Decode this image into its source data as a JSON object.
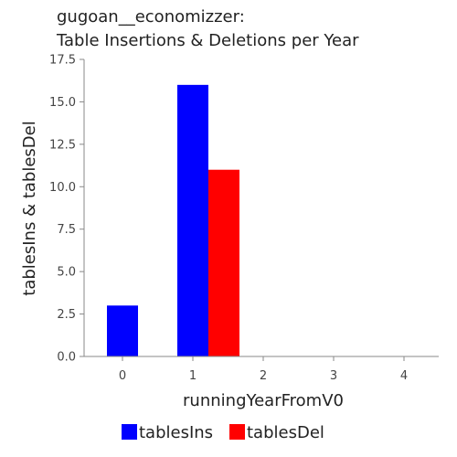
{
  "chart_data": {
    "type": "bar",
    "title_lines": [
      "gugoan__economizzer:",
      "Table Insertions & Deletions per Year"
    ],
    "xlabel": "runningYearFromV0",
    "ylabel": "tablesIns & tablesDel",
    "categories": [
      "0",
      "1",
      "2",
      "3",
      "4"
    ],
    "series": [
      {
        "name": "tablesIns",
        "color": "#0000ff",
        "values": [
          3,
          16,
          0,
          0,
          0
        ]
      },
      {
        "name": "tablesDel",
        "color": "#ff0000",
        "values": [
          0,
          11,
          0,
          0,
          0
        ]
      }
    ],
    "ylim": [
      0,
      17.5
    ],
    "yticks": [
      "0.0",
      "2.5",
      "5.0",
      "7.5",
      "10.0",
      "12.5",
      "15.0",
      "17.5"
    ],
    "grid": false,
    "legend_position": "bottom"
  }
}
